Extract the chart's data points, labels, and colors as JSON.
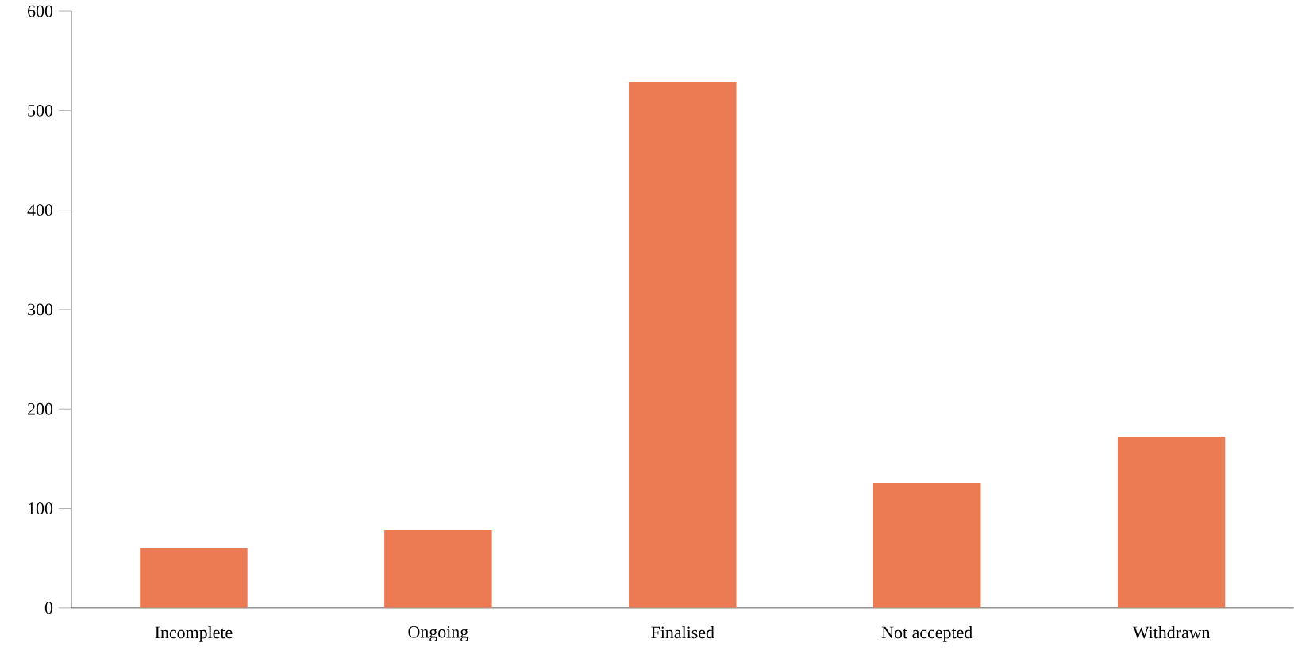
{
  "chart_data": {
    "type": "bar",
    "categories": [
      "Incomplete",
      "Ongoing",
      "Finalised",
      "Not accepted",
      "Withdrawn"
    ],
    "values": [
      60,
      78,
      529,
      126,
      172
    ],
    "color": "#ec7a52",
    "ylim": [
      0,
      600
    ],
    "yticks": [
      0,
      100,
      200,
      300,
      400,
      500,
      600
    ],
    "grid": false
  }
}
